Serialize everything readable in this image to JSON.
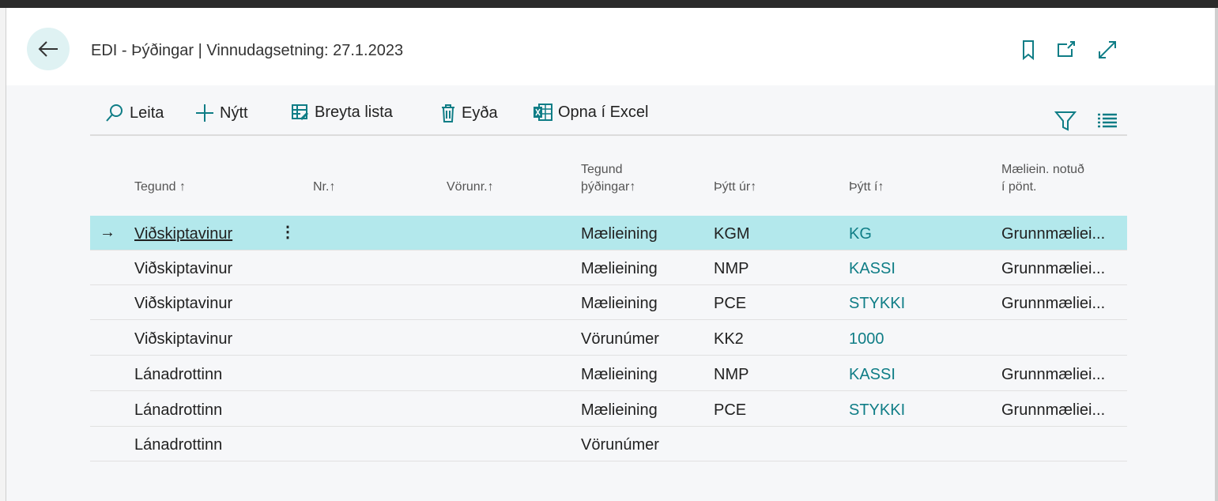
{
  "header": {
    "title": "EDI - Þýðingar | Vinnudagsetning: 27.1.2023",
    "icons": [
      "back-arrow-icon",
      "bookmark-icon",
      "open-new-window-icon",
      "expand-icon"
    ]
  },
  "toolbar": {
    "search": "Leita",
    "new": "Nýtt",
    "edit_list": "Breyta lista",
    "delete": "Eyða",
    "open_excel": "Opna í Excel"
  },
  "accent": "#0f7d86",
  "selected_row_color": "#b3e8ec",
  "columns": {
    "type": "Tegund",
    "no": "Nr.",
    "item_no": "Vörunr.",
    "trans_type_1": "Tegund",
    "trans_type_2": "þýðingar",
    "from": "Þýtt úr",
    "to": "Þýtt í",
    "uom_1": "Mæliein. notuð",
    "uom_2": "í pönt.",
    "sort": "↑"
  },
  "rows": [
    {
      "type": "Viðskiptavinur",
      "no": "",
      "item_no": "",
      "trans_type": "Mælieining",
      "from": "KGM",
      "to": "KG",
      "uom": "Grunnmæliei..."
    },
    {
      "type": "Viðskiptavinur",
      "no": "",
      "item_no": "",
      "trans_type": "Mælieining",
      "from": "NMP",
      "to": "KASSI",
      "uom": "Grunnmæliei..."
    },
    {
      "type": "Viðskiptavinur",
      "no": "",
      "item_no": "",
      "trans_type": "Mælieining",
      "from": "PCE",
      "to": "STYKKI",
      "uom": "Grunnmæliei..."
    },
    {
      "type": "Viðskiptavinur",
      "no": "",
      "item_no": "",
      "trans_type": "Vörunúmer",
      "from": "KK2",
      "to": "1000",
      "uom": ""
    },
    {
      "type": "Lánadrottinn",
      "no": "",
      "item_no": "",
      "trans_type": "Mælieining",
      "from": "NMP",
      "to": "KASSI",
      "uom": "Grunnmæliei..."
    },
    {
      "type": "Lánadrottinn",
      "no": "",
      "item_no": "",
      "trans_type": "Mælieining",
      "from": "PCE",
      "to": "STYKKI",
      "uom": "Grunnmæliei..."
    },
    {
      "type": "Lánadrottinn",
      "no": "",
      "item_no": "",
      "trans_type": "Vörunúmer",
      "from": "",
      "to": "",
      "uom": ""
    }
  ]
}
